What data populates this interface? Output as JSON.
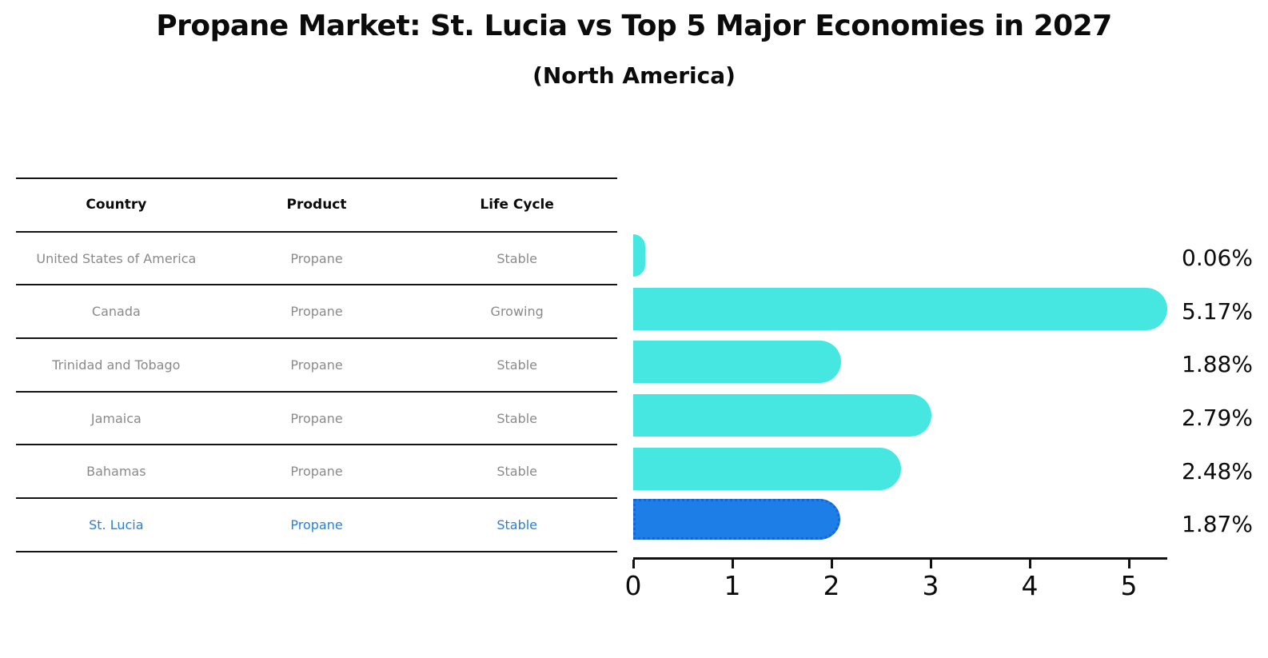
{
  "title": "Propane Market: St. Lucia vs Top 5 Major Economies in 2027",
  "subtitle": "(North America)",
  "table": {
    "headers": [
      "Country",
      "Product",
      "Life Cycle"
    ],
    "rows": [
      {
        "country": "United States of America",
        "product": "Propane",
        "life_cycle": "Stable",
        "highlight": false
      },
      {
        "country": "Canada",
        "product": "Propane",
        "life_cycle": "Growing",
        "highlight": false
      },
      {
        "country": "Trinidad and Tobago",
        "product": "Propane",
        "life_cycle": "Stable",
        "highlight": false
      },
      {
        "country": "Jamaica",
        "product": "Propane",
        "life_cycle": "Stable",
        "highlight": false
      },
      {
        "country": "Bahamas",
        "product": "Propane",
        "life_cycle": "Stable",
        "highlight": false
      },
      {
        "country": "St. Lucia",
        "product": "Propane",
        "life_cycle": "Stable",
        "highlight": true
      }
    ]
  },
  "chart_data": {
    "type": "bar",
    "orientation": "horizontal",
    "categories": [
      "United States of America",
      "Canada",
      "Trinidad and Tobago",
      "Jamaica",
      "Bahamas",
      "St. Lucia"
    ],
    "values": [
      0.06,
      5.17,
      1.88,
      2.79,
      2.48,
      1.87
    ],
    "labels": [
      "0.06%",
      "5.17%",
      "1.88%",
      "2.79%",
      "2.48%",
      "1.87%"
    ],
    "xticks": [
      "0",
      "1",
      "2",
      "3",
      "4",
      "5"
    ],
    "xlim": [
      0,
      5.39
    ],
    "grid": false,
    "legend": "none",
    "highlight_index": 5,
    "title": "Propane Market: St. Lucia vs Top 5 Major Economies in 2027",
    "subtitle": "(North America)",
    "xlabel": "",
    "ylabel": ""
  },
  "colors": {
    "bar": "#47E7E1",
    "highlight_bar": "#1E7EE8",
    "highlight_border": "#1565D2",
    "highlight_text": "#2980D9",
    "muted_text": "#8A8A8A",
    "line": "#141414"
  }
}
